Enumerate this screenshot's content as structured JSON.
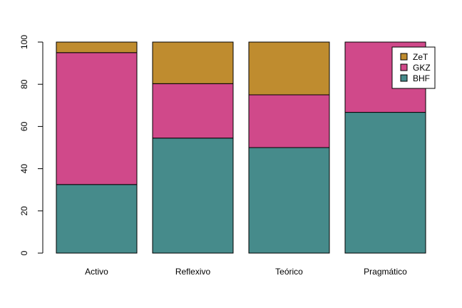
{
  "chart_data": {
    "type": "bar",
    "stacked": true,
    "categories": [
      "Activo",
      "Reflexivo",
      "Teórico",
      "Pragmático"
    ],
    "series": [
      {
        "name": "BHF",
        "color": "#468b8b",
        "values": [
          32.5,
          54.5,
          50.0,
          66.7
        ]
      },
      {
        "name": "GKZ",
        "color": "#d0498a",
        "values": [
          62.5,
          25.8,
          25.0,
          33.3
        ]
      },
      {
        "name": "ZeT",
        "color": "#bf8c2f",
        "values": [
          5.0,
          19.7,
          25.0,
          0.0
        ]
      }
    ],
    "yticks": [
      0,
      20,
      40,
      60,
      80,
      100
    ],
    "ylim": [
      0,
      100
    ],
    "title": "",
    "xlabel": "",
    "ylabel": "",
    "legend": {
      "position": "top-right",
      "order": [
        "ZeT",
        "GKZ",
        "BHF"
      ]
    },
    "grid": false
  }
}
